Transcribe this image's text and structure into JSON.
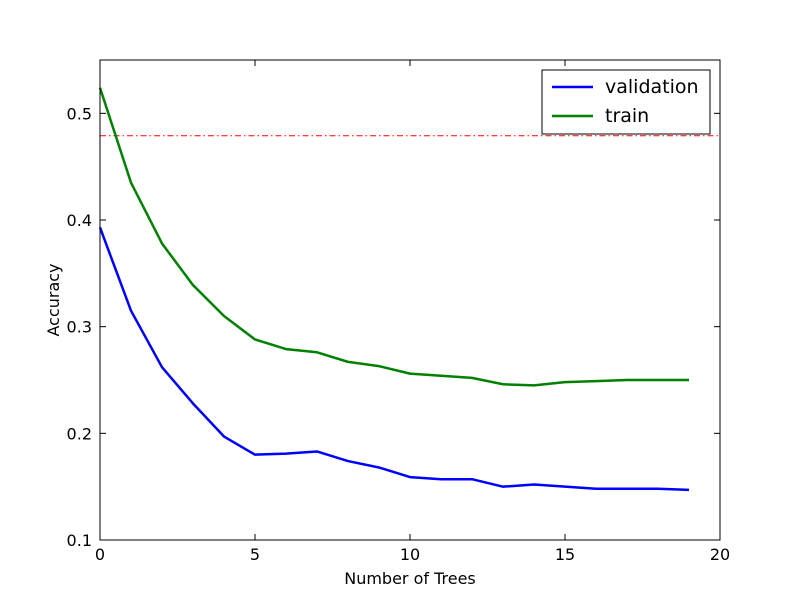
{
  "chart_data": {
    "type": "line",
    "title": "",
    "xlabel": "Number of Trees",
    "ylabel": "Accuracy",
    "xlim": [
      0,
      20
    ],
    "ylim": [
      0.1,
      0.55
    ],
    "xticks": [
      "0",
      "5",
      "10",
      "15",
      "20"
    ],
    "yticks": [
      "0.1",
      "0.2",
      "0.3",
      "0.4",
      "0.5"
    ],
    "grid": false,
    "legend_position": "top-right",
    "series": [
      {
        "name": "validation",
        "color": "#0000ff",
        "x": [
          0,
          1,
          2,
          3,
          4,
          5,
          6,
          7,
          8,
          9,
          10,
          11,
          12,
          13,
          14,
          15,
          16,
          17,
          18,
          19
        ],
        "values": [
          0.393,
          0.315,
          0.262,
          0.228,
          0.197,
          0.18,
          0.181,
          0.183,
          0.174,
          0.168,
          0.159,
          0.157,
          0.157,
          0.15,
          0.152,
          0.15,
          0.148,
          0.148,
          0.148,
          0.147
        ]
      },
      {
        "name": "train",
        "color": "#008000",
        "x": [
          0,
          1,
          2,
          3,
          4,
          5,
          6,
          7,
          8,
          9,
          10,
          11,
          12,
          13,
          14,
          15,
          16,
          17,
          18,
          19
        ],
        "values": [
          0.524,
          0.435,
          0.378,
          0.339,
          0.31,
          0.288,
          0.279,
          0.276,
          0.267,
          0.263,
          0.256,
          0.254,
          0.252,
          0.246,
          0.245,
          0.248,
          0.249,
          0.25,
          0.25,
          0.25
        ]
      }
    ],
    "reference_line": {
      "y": 0.479,
      "color": "#ff0000",
      "style": "dash-dot"
    }
  }
}
